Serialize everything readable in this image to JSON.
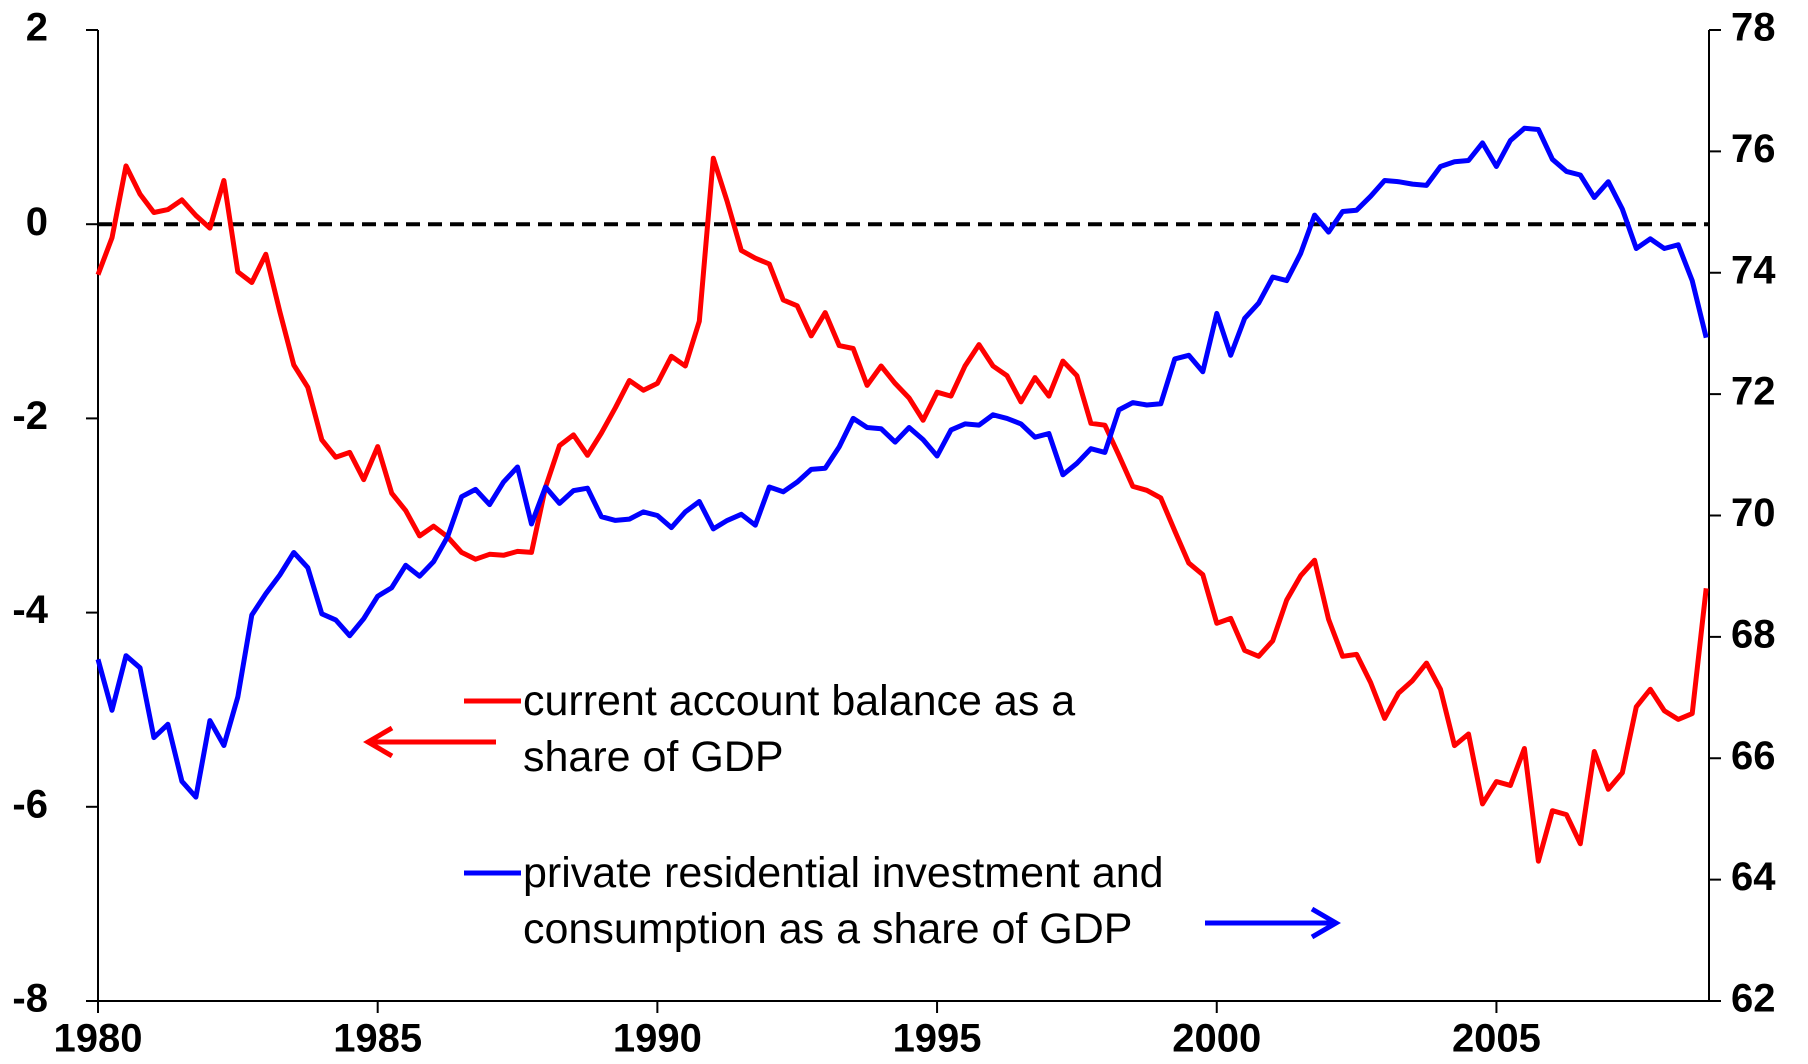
{
  "chart_data": {
    "type": "line",
    "x": [
      1980,
      1980.25,
      1980.5,
      1980.75,
      1981,
      1981.25,
      1981.5,
      1981.75,
      1982,
      1982.25,
      1982.5,
      1982.75,
      1983,
      1983.25,
      1983.5,
      1983.75,
      1984,
      1984.25,
      1984.5,
      1984.75,
      1985,
      1985.25,
      1985.5,
      1985.75,
      1986,
      1986.25,
      1986.5,
      1986.75,
      1987,
      1987.25,
      1987.5,
      1987.75,
      1988,
      1988.25,
      1988.5,
      1988.75,
      1989,
      1989.25,
      1989.5,
      1989.75,
      1990,
      1990.25,
      1990.5,
      1990.75,
      1991,
      1991.25,
      1991.5,
      1991.75,
      1992,
      1992.25,
      1992.5,
      1992.75,
      1993,
      1993.25,
      1993.5,
      1993.75,
      1994,
      1994.25,
      1994.5,
      1994.75,
      1995,
      1995.25,
      1995.5,
      1995.75,
      1996,
      1996.25,
      1996.5,
      1996.75,
      1997,
      1997.25,
      1997.5,
      1997.75,
      1998,
      1998.25,
      1998.5,
      1998.75,
      1999,
      1999.25,
      1999.5,
      1999.75,
      2000,
      2000.25,
      2000.5,
      2000.75,
      2001,
      2001.25,
      2001.5,
      2001.75,
      2002,
      2002.25,
      2002.5,
      2002.75,
      2003,
      2003.25,
      2003.5,
      2003.75,
      2004,
      2004.25,
      2004.5,
      2004.75,
      2005,
      2005.25,
      2005.5,
      2005.75,
      2006,
      2006.25,
      2006.5,
      2006.75,
      2007,
      2007.25,
      2007.5,
      2007.75,
      2008,
      2008.25,
      2008.5,
      2008.75
    ],
    "series": [
      {
        "name": "current account balance as a share of GDP",
        "color": "#ff0000",
        "values": [
          -0.52,
          -0.14,
          0.6,
          0.31,
          0.12,
          0.15,
          0.25,
          0.09,
          -0.04,
          0.45,
          -0.49,
          -0.6,
          -0.31,
          -0.9,
          -1.45,
          -1.68,
          -2.22,
          -2.4,
          -2.35,
          -2.63,
          -2.29,
          -2.77,
          -2.95,
          -3.21,
          -3.11,
          -3.22,
          -3.38,
          -3.45,
          -3.4,
          -3.41,
          -3.37,
          -3.38,
          -2.71,
          -2.28,
          -2.17,
          -2.38,
          -2.15,
          -1.89,
          -1.61,
          -1.71,
          -1.64,
          -1.36,
          -1.46,
          -1.0,
          0.68,
          0.23,
          -0.27,
          -0.35,
          -0.41,
          -0.78,
          -0.84,
          -1.15,
          -0.91,
          -1.25,
          -1.28,
          -1.66,
          -1.46,
          -1.64,
          -1.79,
          -2.02,
          -1.73,
          -1.77,
          -1.46,
          -1.24,
          -1.46,
          -1.56,
          -1.83,
          -1.58,
          -1.77,
          -1.41,
          -1.56,
          -2.05,
          -2.07,
          -2.38,
          -2.7,
          -2.74,
          -2.82,
          -3.16,
          -3.49,
          -3.61,
          -4.11,
          -4.06,
          -4.39,
          -4.45,
          -4.29,
          -3.87,
          -3.62,
          -3.46,
          -4.07,
          -4.45,
          -4.43,
          -4.72,
          -5.09,
          -4.83,
          -4.7,
          -4.52,
          -4.79,
          -5.37,
          -5.25,
          -5.97,
          -5.74,
          -5.78,
          -5.4,
          -6.56,
          -6.04,
          -6.08,
          -6.38,
          -5.43,
          -5.82,
          -5.65,
          -4.97,
          -4.79,
          -5.01,
          -5.1,
          -5.04,
          -3.75
        ]
      },
      {
        "name": "private residential investment and consumption as a share of GDP",
        "color": "#0000ff",
        "axis": "y2",
        "values": [
          67.63,
          66.79,
          67.69,
          67.49,
          66.34,
          66.56,
          65.62,
          65.36,
          66.62,
          66.21,
          67.01,
          68.36,
          68.71,
          69.02,
          69.39,
          69.14,
          68.38,
          68.28,
          68.02,
          68.3,
          68.67,
          68.81,
          69.18,
          69.0,
          69.24,
          69.65,
          70.31,
          70.43,
          70.18,
          70.55,
          70.8,
          69.86,
          70.47,
          70.2,
          70.41,
          70.45,
          69.98,
          69.92,
          69.94,
          70.06,
          70.0,
          69.8,
          70.06,
          70.23,
          69.78,
          69.92,
          70.02,
          69.84,
          70.47,
          70.39,
          70.55,
          70.76,
          70.78,
          71.13,
          71.6,
          71.45,
          71.43,
          71.21,
          71.45,
          71.25,
          70.98,
          71.41,
          71.51,
          71.49,
          71.66,
          71.6,
          71.51,
          71.29,
          71.35,
          70.67,
          70.86,
          71.1,
          71.04,
          71.74,
          71.86,
          71.82,
          71.84,
          72.58,
          72.64,
          72.37,
          73.33,
          72.64,
          73.25,
          73.5,
          73.93,
          73.87,
          74.32,
          74.95,
          74.67,
          75.01,
          75.03,
          75.26,
          75.52,
          75.5,
          75.46,
          75.44,
          75.75,
          75.83,
          75.85,
          76.14,
          75.75,
          76.18,
          76.38,
          76.36,
          75.87,
          75.67,
          75.61,
          75.24,
          75.5,
          75.05,
          74.4,
          74.56,
          74.4,
          74.46,
          73.87,
          72.93
        ]
      }
    ],
    "xlim": [
      1980,
      2008.8
    ],
    "xticks": [
      1980,
      1985,
      1990,
      1995,
      2000,
      2005
    ],
    "ylim": [
      -8,
      2
    ],
    "yticks": [
      -8,
      -6,
      -4,
      -2,
      0,
      2
    ],
    "y2lim": [
      62,
      78
    ],
    "y2ticks": [
      62,
      64,
      66,
      68,
      70,
      72,
      74,
      76,
      78
    ],
    "reference_line": {
      "value": 0,
      "color": "#000000",
      "style": "dashed"
    }
  }
}
